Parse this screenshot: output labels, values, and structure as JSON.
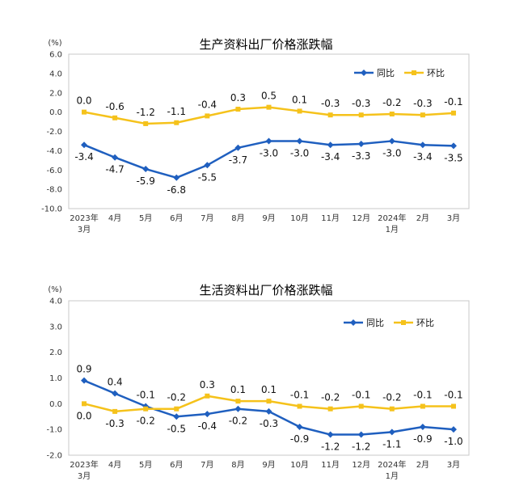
{
  "chart_data": [
    {
      "type": "line",
      "title": "生产资料出厂价格涨跌幅",
      "ylabel": "(%)",
      "ylim": [
        -10.0,
        6.0
      ],
      "y_ticks": [
        "6.0",
        "4.0",
        "2.0",
        "0.0",
        "-2.0",
        "-4.0",
        "-6.0",
        "-8.0",
        "-10.0"
      ],
      "y_tick_values": [
        6,
        4,
        2,
        0,
        -2,
        -4,
        -6,
        -8,
        -10
      ],
      "categories": [
        [
          "2023年",
          "3月"
        ],
        [
          "4月"
        ],
        [
          "5月"
        ],
        [
          "6月"
        ],
        [
          "7月"
        ],
        [
          "8月"
        ],
        [
          "9月"
        ],
        [
          "10月"
        ],
        [
          "11月"
        ],
        [
          "12月"
        ],
        [
          "2024年",
          "1月"
        ],
        [
          "2月"
        ],
        [
          "3月"
        ]
      ],
      "legend_position": "top-right",
      "grid": false,
      "series": [
        {
          "name": "同比",
          "color": "#1f5fbf",
          "marker": "diamond",
          "values": [
            -3.4,
            -4.7,
            -5.9,
            -6.8,
            -5.5,
            -3.7,
            -3.0,
            -3.0,
            -3.4,
            -3.3,
            -3.0,
            -3.4,
            -3.5
          ],
          "labels": [
            "-3.4",
            "-4.7",
            "-5.9",
            "-6.8",
            "-5.5",
            "-3.7",
            "-3.0",
            "-3.0",
            "-3.4",
            "-3.3",
            "-3.0",
            "-3.4",
            "-3.5"
          ],
          "label_side": "below"
        },
        {
          "name": "环比",
          "color": "#f5c21b",
          "marker": "square",
          "values": [
            0.0,
            -0.6,
            -1.2,
            -1.1,
            -0.4,
            0.3,
            0.5,
            0.1,
            -0.3,
            -0.3,
            -0.2,
            -0.3,
            -0.1
          ],
          "labels": [
            "0.0",
            "-0.6",
            "-1.2",
            "-1.1",
            "-0.4",
            "0.3",
            "0.5",
            "0.1",
            "-0.3",
            "-0.3",
            "-0.2",
            "-0.3",
            "-0.1"
          ],
          "label_side": "above"
        }
      ]
    },
    {
      "type": "line",
      "title": "生活资料出厂价格涨跌幅",
      "ylabel": "(%)",
      "ylim": [
        -2.0,
        4.0
      ],
      "y_ticks": [
        "4.0",
        "3.0",
        "2.0",
        "1.0",
        "0.0",
        "-1.0",
        "-2.0"
      ],
      "y_tick_values": [
        4,
        3,
        2,
        1,
        0,
        -1,
        -2
      ],
      "categories": [
        [
          "2023年",
          "3月"
        ],
        [
          "4月"
        ],
        [
          "5月"
        ],
        [
          "6月"
        ],
        [
          "7月"
        ],
        [
          "8月"
        ],
        [
          "9月"
        ],
        [
          "10月"
        ],
        [
          "11月"
        ],
        [
          "12月"
        ],
        [
          "2024年",
          "1月"
        ],
        [
          "2月"
        ],
        [
          "3月"
        ]
      ],
      "legend_position": "top-right",
      "grid": false,
      "series": [
        {
          "name": "同比",
          "color": "#1f5fbf",
          "marker": "diamond",
          "values": [
            0.9,
            0.4,
            -0.1,
            -0.5,
            -0.4,
            -0.2,
            -0.3,
            -0.9,
            -1.2,
            -1.2,
            -1.1,
            -0.9,
            -1.0
          ],
          "labels": [
            "0.9",
            "0.4",
            "-0.1",
            "-0.5",
            "-0.4",
            "-0.2",
            "-0.3",
            "-0.9",
            "-1.2",
            "-1.2",
            "-1.1",
            "-0.9",
            "-1.0"
          ],
          "label_side": [
            "above",
            "above",
            "above",
            "below",
            "below",
            "below",
            "below",
            "below",
            "below",
            "below",
            "below",
            "below",
            "below"
          ]
        },
        {
          "name": "环比",
          "color": "#f5c21b",
          "marker": "square",
          "values": [
            0.0,
            -0.3,
            -0.2,
            -0.2,
            0.3,
            0.1,
            0.1,
            -0.1,
            -0.2,
            -0.1,
            -0.2,
            -0.1,
            -0.1
          ],
          "labels": [
            "0.0",
            "-0.3",
            "-0.2",
            "-0.2",
            "0.3",
            "0.1",
            "0.1",
            "-0.1",
            "-0.2",
            "-0.1",
            "-0.2",
            "-0.1",
            "-0.1"
          ],
          "label_side": [
            "below",
            "below",
            "below",
            "above",
            "above",
            "above",
            "above",
            "above",
            "above",
            "above",
            "above",
            "above",
            "above"
          ]
        }
      ]
    }
  ]
}
